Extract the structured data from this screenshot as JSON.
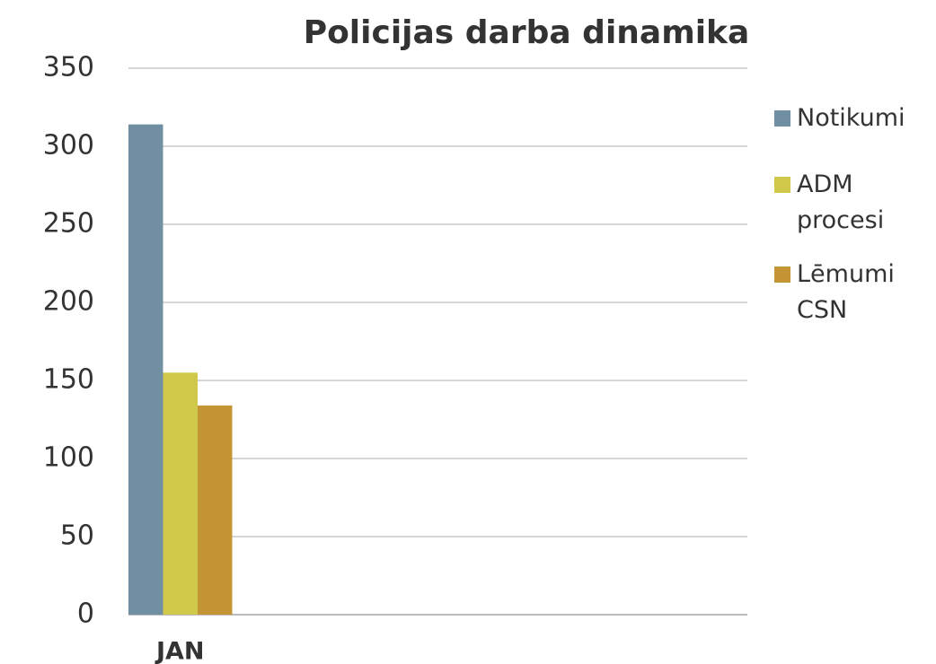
{
  "chart_data": {
    "type": "bar",
    "title": "Policijas darba dinamika",
    "categories": [
      "JAN"
    ],
    "series": [
      {
        "name": "Notikumi",
        "color": "#718fa2",
        "values": [
          314
        ]
      },
      {
        "name": "ADM procesi",
        "color": "#cfc84a",
        "values": [
          155
        ]
      },
      {
        "name": "Lēmumi CSN",
        "color": "#c49535",
        "values": [
          134
        ]
      }
    ],
    "ylim": [
      0,
      350
    ],
    "yticks": [
      0,
      50,
      100,
      150,
      200,
      250,
      300,
      350
    ],
    "grid": true,
    "legend": "right"
  }
}
